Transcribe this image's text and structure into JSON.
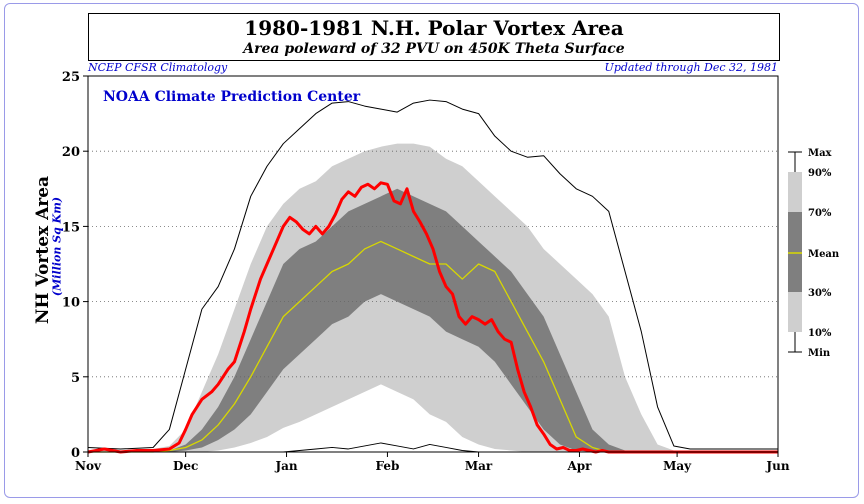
{
  "header": {
    "title": "1980-1981 N.H. Polar Vortex Area",
    "subtitle": "Area poleward of 32 PVU on 450K Theta Surface",
    "note_left": "NCEP CFSR Climatology",
    "note_right": "Updated through Dec 32, 1981",
    "watermark": "NOAA Climate Prediction Center"
  },
  "colors": {
    "observed": "#ff0000",
    "mean": "#d8d800",
    "band_10_90": "#cfcfcf",
    "band_30_70": "#7f7f7f",
    "minmax": "#000000"
  },
  "chart_data": {
    "type": "line",
    "ylabel": "NH Vortex Area",
    "yunits": "(Million Sq Km)",
    "ylim": [
      0,
      25
    ],
    "yticks": [
      0,
      5,
      10,
      15,
      20,
      25
    ],
    "xlim": [
      0,
      212
    ],
    "xticks": [
      {
        "day": 0,
        "label": "Nov"
      },
      {
        "day": 30,
        "label": "Dec"
      },
      {
        "day": 61,
        "label": "Jan"
      },
      {
        "day": 92,
        "label": "Feb"
      },
      {
        "day": 120,
        "label": "Mar"
      },
      {
        "day": 151,
        "label": "Apr"
      },
      {
        "day": 181,
        "label": "May"
      },
      {
        "day": 212,
        "label": "Jun"
      }
    ],
    "grid": true,
    "x_days": [
      0,
      10,
      20,
      25,
      30,
      35,
      40,
      45,
      50,
      55,
      60,
      65,
      70,
      75,
      80,
      85,
      90,
      95,
      100,
      105,
      110,
      115,
      120,
      125,
      130,
      135,
      140,
      145,
      150,
      155,
      160,
      165,
      170,
      175,
      180,
      185,
      190,
      200,
      212
    ],
    "series": [
      {
        "name": "Max",
        "values": [
          0.3,
          0.2,
          0.3,
          1.5,
          5.5,
          9.5,
          11.0,
          13.5,
          17.0,
          19.0,
          20.5,
          21.5,
          22.5,
          23.2,
          23.3,
          23.0,
          22.8,
          22.6,
          23.2,
          23.4,
          23.3,
          22.8,
          22.5,
          21.0,
          20.0,
          19.6,
          19.7,
          18.5,
          17.5,
          17.0,
          16.0,
          12.0,
          8.0,
          3.0,
          0.4,
          0.2,
          0.2,
          0.2,
          0.2
        ]
      },
      {
        "name": "90%",
        "values": [
          0.1,
          0.1,
          0.2,
          0.4,
          1.5,
          4.0,
          6.5,
          9.5,
          12.5,
          15.0,
          16.5,
          17.5,
          18.0,
          19.0,
          19.5,
          20.0,
          20.3,
          20.5,
          20.5,
          20.3,
          19.5,
          19.0,
          18.0,
          17.0,
          16.0,
          15.0,
          13.5,
          12.5,
          11.5,
          10.5,
          9.0,
          5.0,
          2.5,
          0.5,
          0.1,
          0.0,
          0.0,
          0.0,
          0.0
        ]
      },
      {
        "name": "70%",
        "values": [
          0.0,
          0.0,
          0.0,
          0.1,
          0.5,
          1.5,
          3.0,
          5.0,
          7.5,
          10.0,
          12.5,
          13.5,
          14.0,
          15.0,
          16.0,
          16.5,
          17.0,
          17.5,
          17.0,
          16.5,
          16.0,
          15.0,
          14.0,
          13.0,
          12.0,
          10.5,
          9.0,
          6.5,
          4.0,
          1.5,
          0.5,
          0.1,
          0.0,
          0.0,
          0.0,
          0.0,
          0.0,
          0.0,
          0.0
        ]
      },
      {
        "name": "Mean",
        "values": [
          0.0,
          0.0,
          0.0,
          0.1,
          0.3,
          0.8,
          1.8,
          3.2,
          5.0,
          7.0,
          9.0,
          10.0,
          11.0,
          12.0,
          12.5,
          13.5,
          14.0,
          13.5,
          13.0,
          12.5,
          12.5,
          11.5,
          12.5,
          12.0,
          10.0,
          8.0,
          6.0,
          3.5,
          1.0,
          0.3,
          0.0,
          0.0,
          0.0,
          0.0,
          0.0,
          0.0,
          0.0,
          0.0,
          0.0
        ]
      },
      {
        "name": "30%",
        "values": [
          0.0,
          0.0,
          0.0,
          0.0,
          0.1,
          0.3,
          0.8,
          1.5,
          2.5,
          4.0,
          5.5,
          6.5,
          7.5,
          8.5,
          9.0,
          10.0,
          10.5,
          10.0,
          9.5,
          9.0,
          8.0,
          7.5,
          7.0,
          6.0,
          4.5,
          3.0,
          1.5,
          0.5,
          0.1,
          0.0,
          0.0,
          0.0,
          0.0,
          0.0,
          0.0,
          0.0,
          0.0,
          0.0,
          0.0
        ]
      },
      {
        "name": "10%",
        "values": [
          0.0,
          0.0,
          0.0,
          0.0,
          0.0,
          0.0,
          0.1,
          0.3,
          0.6,
          1.0,
          1.6,
          2.0,
          2.5,
          3.0,
          3.5,
          4.0,
          4.5,
          4.0,
          3.5,
          2.5,
          2.0,
          1.0,
          0.5,
          0.2,
          0.1,
          0.0,
          0.0,
          0.0,
          0.0,
          0.0,
          0.0,
          0.0,
          0.0,
          0.0,
          0.0,
          0.0,
          0.0,
          0.0,
          0.0
        ]
      },
      {
        "name": "Min",
        "values": [
          0.0,
          0.0,
          0.0,
          0.0,
          0.0,
          0.0,
          0.0,
          0.0,
          0.0,
          0.0,
          0.0,
          0.1,
          0.2,
          0.3,
          0.2,
          0.4,
          0.6,
          0.4,
          0.2,
          0.5,
          0.3,
          0.1,
          0.0,
          0.0,
          0.0,
          0.0,
          0.0,
          0.0,
          0.0,
          0.0,
          0.0,
          0.0,
          0.0,
          0.0,
          0.0,
          0.0,
          0.0,
          0.0,
          0.0
        ]
      }
    ],
    "observed": {
      "x": [
        0,
        5,
        10,
        15,
        20,
        25,
        28,
        30,
        32,
        35,
        38,
        40,
        43,
        45,
        48,
        50,
        53,
        55,
        58,
        60,
        62,
        64,
        66,
        68,
        70,
        72,
        74,
        76,
        78,
        80,
        82,
        84,
        86,
        88,
        90,
        92,
        94,
        96,
        98,
        100,
        102,
        104,
        106,
        108,
        110,
        112,
        114,
        116,
        118,
        120,
        122,
        124,
        126,
        128,
        130,
        132,
        134,
        136,
        138,
        140,
        142,
        144,
        146,
        148,
        150,
        152,
        154,
        156,
        158,
        160,
        165,
        170,
        180,
        190,
        200,
        212
      ],
      "y": [
        0,
        0.2,
        0,
        0.1,
        0.1,
        0.2,
        0.6,
        1.5,
        2.5,
        3.5,
        4.0,
        4.5,
        5.5,
        6.0,
        8.0,
        9.5,
        11.5,
        12.5,
        14.0,
        15.0,
        15.6,
        15.3,
        14.8,
        14.5,
        15.0,
        14.5,
        15.0,
        15.8,
        16.8,
        17.3,
        17.0,
        17.6,
        17.8,
        17.5,
        17.9,
        17.8,
        16.7,
        16.5,
        17.5,
        16.0,
        15.3,
        14.5,
        13.5,
        12.0,
        11.0,
        10.5,
        9.0,
        8.5,
        9.0,
        8.8,
        8.5,
        8.8,
        8.0,
        7.5,
        7.3,
        5.5,
        4.0,
        3.0,
        1.8,
        1.2,
        0.5,
        0.2,
        0.3,
        0.1,
        0.1,
        0.2,
        0.1,
        0.0,
        0.1,
        0.0,
        0.0,
        0.0,
        0.0,
        0.0,
        0.0,
        0.0
      ]
    },
    "legend": {
      "placement": "right",
      "labels": [
        "Max",
        "90%",
        "70%",
        "Mean",
        "30%",
        "10%",
        "Min"
      ]
    }
  }
}
